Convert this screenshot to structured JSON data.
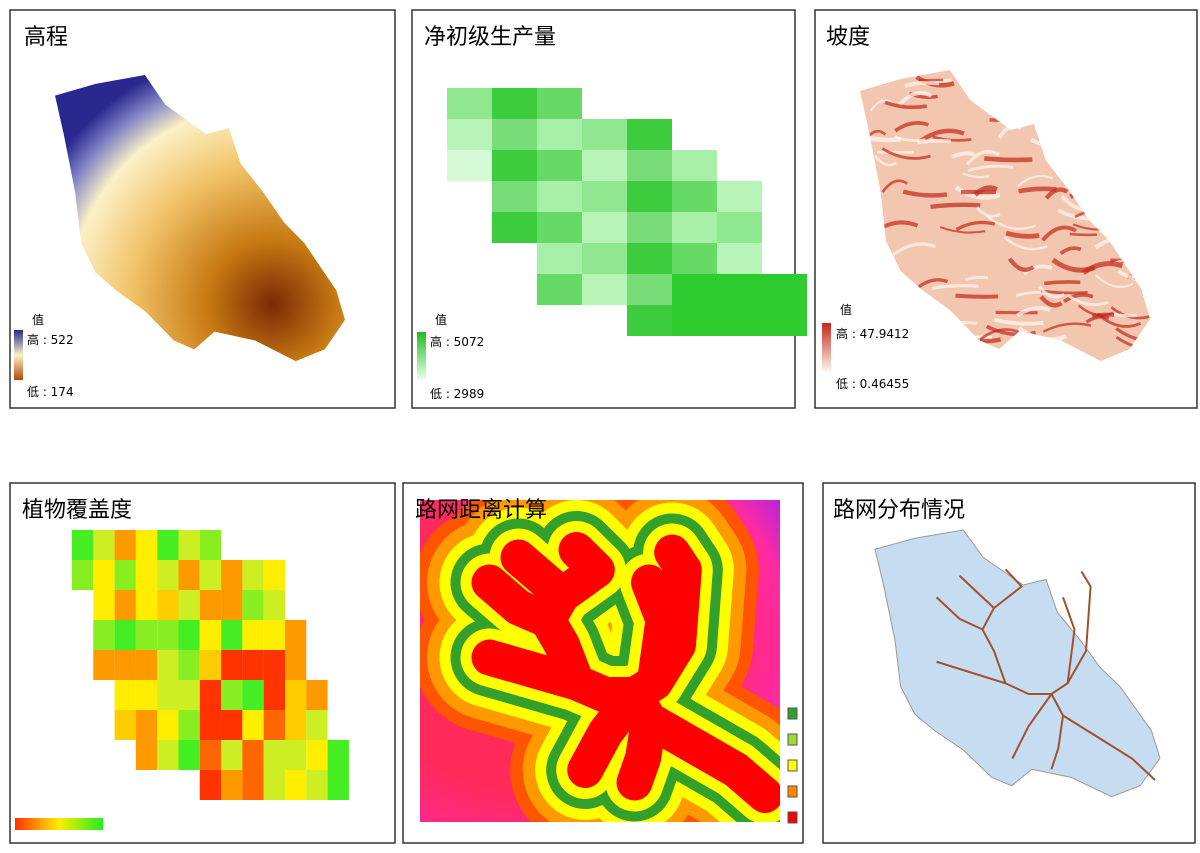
{
  "panels": [
    {
      "title": "高程",
      "legend": {
        "heading": "值",
        "high": "高 : 522",
        "low": "低 : 174"
      }
    },
    {
      "title": "净初级生产量",
      "legend": {
        "heading": "值",
        "high": "高 : 5072",
        "low": "低 : 2989"
      }
    },
    {
      "title": "坡度",
      "legend": {
        "heading": "值",
        "high": "高 : 47.9412",
        "low": "低 : 0.46455"
      }
    },
    {
      "title": "植物覆盖度"
    },
    {
      "title": "路网距离计算"
    },
    {
      "title": "路网分布情况"
    }
  ]
}
